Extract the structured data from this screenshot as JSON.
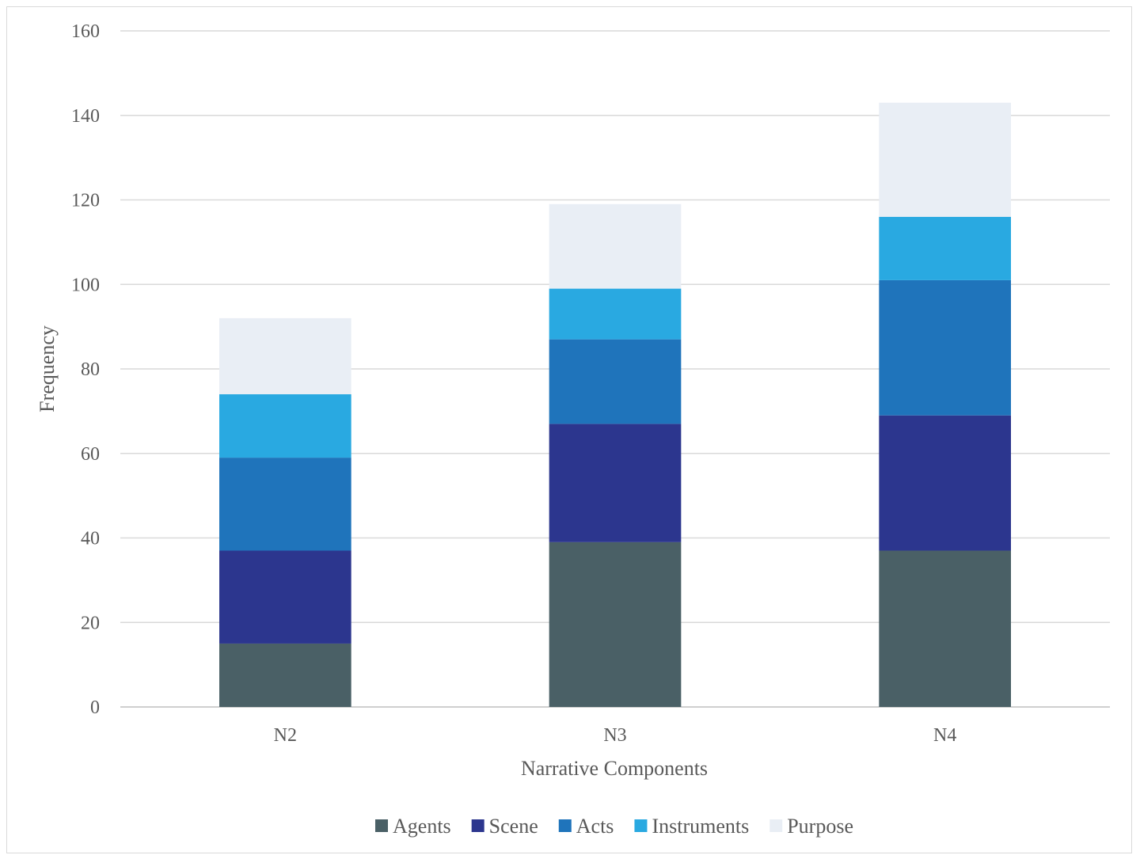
{
  "chart_data": {
    "type": "bar",
    "stacked": true,
    "categories": [
      "N2",
      "N3",
      "N4"
    ],
    "series": [
      {
        "name": "Agents",
        "color": "#4a6066",
        "values": [
          15,
          39,
          37
        ]
      },
      {
        "name": "Scene",
        "color": "#2c368e",
        "values": [
          22,
          28,
          32
        ]
      },
      {
        "name": "Acts",
        "color": "#1f74bb",
        "values": [
          22,
          20,
          32
        ]
      },
      {
        "name": "Instruments",
        "color": "#29a9e1",
        "values": [
          15,
          12,
          15
        ]
      },
      {
        "name": "Purpose",
        "color": "#e9eef5",
        "values": [
          18,
          20,
          27
        ]
      }
    ],
    "xlabel": "Narrative Components",
    "ylabel": "Frequency",
    "ylim": [
      0,
      160
    ],
    "yticks": [
      "0",
      "20",
      "40",
      "60",
      "80",
      "100",
      "120",
      "140",
      "160"
    ],
    "grid": true,
    "legend_position": "bottom",
    "colors": {
      "grid": "#d9d9d9",
      "axis": "#bfbfbf",
      "text": "#595959"
    }
  }
}
